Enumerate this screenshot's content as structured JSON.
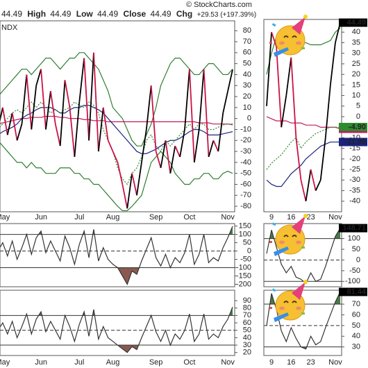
{
  "header": {
    "symbol": "NDX",
    "watermark": "© StockCharts.com",
    "quote": [
      {
        "value": "44.49"
      },
      {
        "label": "High",
        "value": "44.49"
      },
      {
        "label": "Low",
        "value": "44.49"
      },
      {
        "label": "Close",
        "value": "44.49"
      },
      {
        "label": "Chg",
        "value": "+29.53 (+197.39%)"
      }
    ]
  },
  "chart_data": [
    {
      "type": "line",
      "categories": [
        null,
        "May",
        null,
        null,
        null,
        null,
        null,
        null,
        null,
        "Jun",
        null,
        null,
        null,
        null,
        null,
        null,
        null,
        "Jul",
        null,
        null,
        null,
        null,
        null,
        null,
        "Aug",
        null,
        null,
        null,
        null,
        null,
        null,
        null,
        null,
        "Sep",
        null,
        null,
        null,
        null,
        null,
        null,
        "Oct",
        null,
        null,
        null,
        null,
        null,
        null,
        null,
        "Nov",
        null
      ],
      "ylim": [
        -85,
        89
      ],
      "yticks": [
        80,
        70,
        60,
        50,
        40,
        30,
        20,
        10,
        0,
        -10,
        -20,
        -30,
        -40,
        -50,
        -60,
        -70,
        -80
      ],
      "series": [
        {
          "color": "#2e7d2e",
          "values": [
            20,
            25,
            30,
            35,
            40,
            45,
            45,
            40,
            45,
            50,
            55,
            55,
            50,
            45,
            50,
            55,
            55,
            60,
            60,
            55,
            50,
            45,
            35,
            25,
            10,
            5,
            0,
            -10,
            -20,
            -25,
            -25,
            -15,
            -5,
            10,
            30,
            40,
            50,
            55,
            55,
            50,
            45,
            40,
            40,
            45,
            50,
            50,
            45,
            40,
            40,
            45
          ]
        },
        {
          "color": "#2e7d2e",
          "values": [
            -20,
            -25,
            -30,
            -35,
            -40,
            -40,
            -45,
            -40,
            -45,
            -45,
            -50,
            -50,
            -50,
            -45,
            -45,
            -45,
            -50,
            -50,
            -55,
            -55,
            -60,
            -60,
            -65,
            -70,
            -75,
            -80,
            -84,
            -84,
            -80,
            -75,
            -70,
            -55,
            -40,
            -35,
            -30,
            -35,
            -40,
            -50,
            -55,
            -60,
            -60,
            -55,
            -55,
            -50,
            -50,
            -55,
            -55,
            -50,
            -48,
            -50
          ]
        },
        {
          "color": "#c2185b",
          "values": [
            -5,
            -4,
            -3,
            -2,
            -1,
            0,
            0,
            1,
            1,
            1,
            2,
            2,
            2,
            1,
            1,
            0,
            0,
            0,
            -1,
            -1,
            -2,
            -2,
            -2,
            -3,
            -3,
            -3,
            -3,
            -3,
            -3,
            -3,
            -3,
            -3,
            -3,
            -3,
            -3,
            -3,
            -3,
            -3,
            -3,
            -3,
            -3,
            -3,
            -4,
            -4,
            -4,
            -5,
            -5,
            -5,
            -5,
            -5.74
          ]
        },
        {
          "color": "#1a237e",
          "values": [
            -15,
            -12,
            -10,
            -8,
            -5,
            0,
            3,
            5,
            8,
            10,
            10,
            10,
            8,
            5,
            5,
            8,
            10,
            10,
            12,
            12,
            10,
            8,
            5,
            0,
            -5,
            -10,
            -15,
            -20,
            -25,
            -30,
            -32,
            -32,
            -30,
            -28,
            -25,
            -22,
            -20,
            -20,
            -18,
            -15,
            -12,
            -10,
            -10,
            -12,
            -15,
            -15,
            -15,
            -14,
            -13,
            -11.99
          ]
        },
        {
          "color": "#2e8b2e",
          "dash": true,
          "values": [
            -10,
            -5,
            0,
            5,
            8,
            5,
            10,
            15,
            10,
            15,
            10,
            5,
            8,
            5,
            8,
            10,
            15,
            12,
            10,
            15,
            12,
            5,
            -10,
            -20,
            -30,
            -45,
            -55,
            -60,
            -50,
            -45,
            -35,
            -20,
            -15,
            -25,
            -30,
            -20,
            -25,
            -20,
            -15,
            -10,
            -5,
            -10,
            -5,
            -5,
            -10,
            -10,
            -8,
            -6,
            -5,
            -4.9
          ]
        },
        {
          "color": "#000000",
          "down_color": "#cc1144",
          "values": [
            -10,
            10,
            -15,
            5,
            -20,
            -5,
            40,
            -10,
            30,
            45,
            -10,
            25,
            -5,
            -25,
            35,
            10,
            -35,
            15,
            55,
            -20,
            60,
            -30,
            10,
            -20,
            -30,
            -40,
            -60,
            -82,
            -50,
            -70,
            -40,
            -10,
            30,
            -30,
            -45,
            -20,
            -50,
            -25,
            -35,
            -10,
            45,
            -40,
            -10,
            45,
            -35,
            -20,
            -30,
            5,
            25,
            44.49
          ]
        }
      ]
    },
    {
      "type": "line",
      "categories": [
        null,
        "May",
        null,
        null,
        null,
        null,
        null,
        null,
        null,
        "Jun",
        null,
        null,
        null,
        null,
        null,
        null,
        null,
        "Jul",
        null,
        null,
        null,
        null,
        null,
        null,
        "Aug",
        null,
        null,
        null,
        null,
        null,
        null,
        null,
        null,
        "Sep",
        null,
        null,
        null,
        null,
        null,
        null,
        "Oct",
        null,
        null,
        null,
        null,
        null,
        null,
        null,
        "Nov",
        null
      ],
      "ylim": [
        -215,
        165
      ],
      "yticks": [
        150,
        100,
        50,
        0,
        -50,
        -100,
        -150,
        -200
      ],
      "hlines": [
        {
          "value": 100,
          "fill": "above",
          "fill_color": "#4a7a4a"
        },
        {
          "value": 0,
          "dashed": true
        },
        {
          "value": -100,
          "fill": "below",
          "fill_color": "#8a5a50"
        }
      ],
      "series": [
        {
          "color": "#333333",
          "values": [
            0,
            50,
            -30,
            60,
            -50,
            20,
            100,
            -20,
            80,
            120,
            -10,
            60,
            0,
            -60,
            90,
            20,
            -80,
            40,
            120,
            -40,
            130,
            -60,
            20,
            -50,
            -80,
            -100,
            -150,
            -200,
            -120,
            -140,
            -60,
            10,
            80,
            -40,
            -90,
            -20,
            -100,
            -40,
            -70,
            -10,
            100,
            -80,
            -20,
            100,
            -70,
            -40,
            -60,
            20,
            80,
            148.71
          ]
        }
      ]
    },
    {
      "type": "line",
      "categories": [
        null,
        "May",
        null,
        null,
        null,
        null,
        null,
        null,
        null,
        "Jun",
        null,
        null,
        null,
        null,
        null,
        null,
        null,
        "Jul",
        null,
        null,
        null,
        null,
        null,
        null,
        "Aug",
        null,
        null,
        null,
        null,
        null,
        null,
        null,
        null,
        "Sep",
        null,
        null,
        null,
        null,
        null,
        null,
        "Oct",
        null,
        null,
        null,
        null,
        null,
        null,
        null,
        "Nov",
        null
      ],
      "ylim": [
        16,
        104
      ],
      "yticks": [
        90,
        80,
        70,
        60,
        50,
        40,
        30,
        20
      ],
      "hlines": [
        {
          "value": 70,
          "fill": "above",
          "fill_color": "#4a7a4a"
        },
        {
          "value": 50,
          "dashed": true
        },
        {
          "value": 30,
          "fill": "below",
          "fill_color": "#8a5a50"
        }
      ],
      "series": [
        {
          "color": "#333333",
          "values": [
            50,
            60,
            45,
            62,
            40,
            55,
            72,
            45,
            65,
            75,
            48,
            62,
            50,
            38,
            70,
            55,
            35,
            58,
            75,
            42,
            78,
            38,
            55,
            40,
            35,
            30,
            25,
            20,
            28,
            24,
            40,
            55,
            70,
            48,
            35,
            50,
            30,
            45,
            38,
            50,
            72,
            35,
            45,
            72,
            38,
            45,
            40,
            55,
            65,
            81.44
          ]
        }
      ]
    },
    {
      "type": "line",
      "categories": [
        null,
        "9",
        null,
        null,
        null,
        "16",
        null,
        null,
        null,
        "23",
        null,
        null,
        null,
        null,
        "Nov",
        null
      ],
      "ylim": [
        -45,
        46
      ],
      "yticks": [
        40,
        35,
        30,
        25,
        20,
        15,
        10,
        5,
        0,
        -5,
        -10,
        -15,
        -20,
        -25,
        -30,
        -35,
        -40
      ],
      "series": [
        {
          "color": "#2e7d2e",
          "values": [
            20,
            30,
            38,
            40,
            40,
            38,
            36,
            35,
            35,
            34,
            34,
            34,
            35,
            36,
            40,
            42
          ]
        },
        {
          "color": "#c2185b",
          "end_label": true,
          "values": [
            0,
            -1,
            -2,
            -2,
            -2,
            -3,
            -3,
            -3,
            -4,
            -4,
            -4,
            -5,
            -5,
            -5,
            -5,
            -5.74
          ]
        },
        {
          "color": "#1a237e",
          "end_label": true,
          "values": [
            -30,
            -32,
            -33,
            -33,
            -30,
            -27,
            -25,
            -23,
            -20,
            -18,
            -16,
            -14,
            -13,
            -12,
            -12,
            -11.99
          ]
        },
        {
          "color": "#2e8b2e",
          "dash": true,
          "end_label": true,
          "values": [
            -25,
            -22,
            -20,
            -18,
            -15,
            -12,
            -10,
            -15,
            -12,
            -10,
            -8,
            -7,
            -6,
            -5,
            -5,
            -4.9
          ],
          "value_labels": [
            null,
            null,
            null,
            null,
            null,
            null,
            null,
            null,
            null,
            null,
            null,
            null,
            null,
            null,
            null,
            "-4.90"
          ]
        },
        {
          "color": "#000000",
          "down_color": "#cc1144",
          "end_label": true,
          "values": [
            5,
            40,
            33,
            -5,
            10,
            28,
            -10,
            -30,
            -40,
            -25,
            -35,
            -30,
            -10,
            15,
            35,
            44.49
          ]
        }
      ]
    },
    {
      "type": "line",
      "categories": [
        null,
        "9",
        null,
        null,
        null,
        "16",
        null,
        null,
        null,
        "23",
        null,
        null,
        null,
        null,
        "Nov",
        null
      ],
      "ylim": [
        -125,
        170
      ],
      "yticks": [
        100,
        50,
        0,
        -50,
        -100
      ],
      "hlines": [
        {
          "value": 100,
          "fill": "above",
          "fill_color": "#4a7a4a"
        },
        {
          "value": 0,
          "dashed": true
        },
        {
          "value": -100,
          "fill": "below",
          "fill_color": "#8a5a50"
        }
      ],
      "series": [
        {
          "color": "#333333",
          "end_label": true,
          "values": [
            30,
            140,
            60,
            -20,
            -60,
            -30,
            -80,
            -90,
            -110,
            -60,
            -100,
            -90,
            -30,
            40,
            110,
            148.71
          ]
        }
      ]
    },
    {
      "type": "line",
      "categories": [
        null,
        "9",
        null,
        null,
        null,
        "16",
        null,
        null,
        null,
        "23",
        null,
        null,
        null,
        null,
        "Nov",
        null
      ],
      "ylim": [
        22,
        83
      ],
      "yticks": [
        70,
        60,
        50,
        40,
        30
      ],
      "hlines": [
        {
          "value": 70,
          "fill": "above",
          "fill_color": "#4a7a4a"
        },
        {
          "value": 50,
          "dashed": true
        },
        {
          "value": 30,
          "fill": "below",
          "fill_color": "#8a5a50"
        }
      ],
      "series": [
        {
          "color": "#333333",
          "end_label": true,
          "values": [
            50,
            80,
            65,
            45,
            35,
            48,
            38,
            30,
            28,
            40,
            32,
            35,
            48,
            60,
            72,
            81.44
          ]
        }
      ]
    }
  ]
}
